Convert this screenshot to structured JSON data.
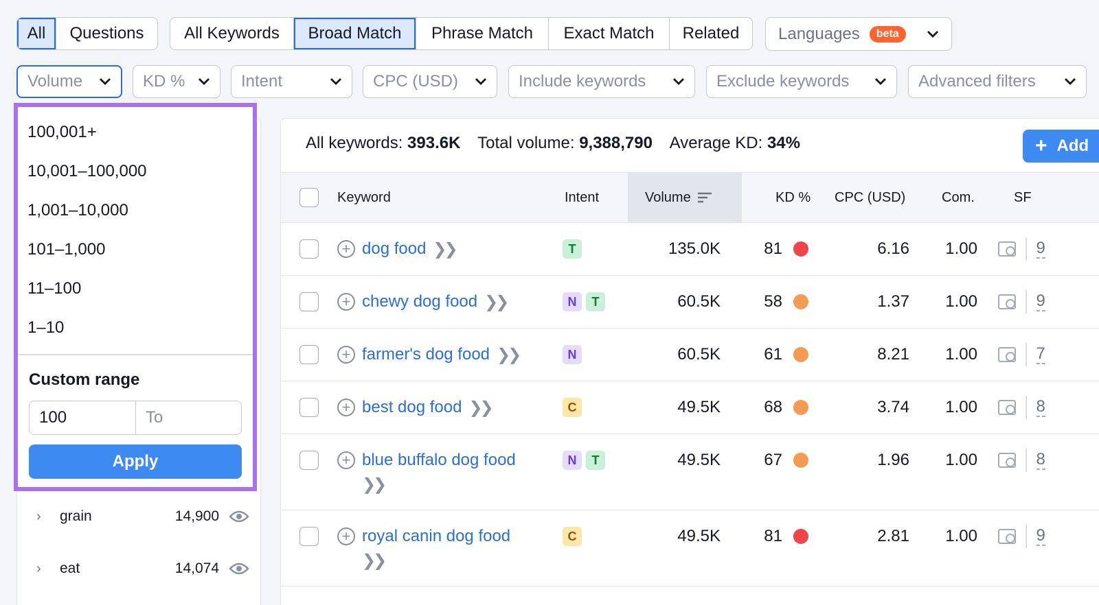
{
  "tabs_scope": [
    "All",
    "Questions"
  ],
  "tabs_match": [
    "All Keywords",
    "Broad Match",
    "Phrase Match",
    "Exact Match",
    "Related"
  ],
  "languages": {
    "label": "Languages",
    "badge": "beta"
  },
  "filters": {
    "volume": "Volume",
    "kd": "KD %",
    "intent": "Intent",
    "cpc": "CPC (USD)",
    "include": "Include keywords",
    "exclude": "Exclude keywords",
    "advanced": "Advanced filters"
  },
  "volume_dropdown": {
    "options": [
      "100,001+",
      "10,001–100,000",
      "1,001–10,000",
      "101–1,000",
      "11–100",
      "1–10"
    ],
    "custom_title": "Custom range",
    "from_value": "100",
    "to_placeholder": "To",
    "apply_label": "Apply"
  },
  "groups": [
    {
      "name": "grain",
      "count": "14,900"
    },
    {
      "name": "eat",
      "count": "14,074"
    }
  ],
  "summary": {
    "all_label": "All keywords:",
    "all_value": "393.6K",
    "total_label": "Total volume:",
    "total_value": "9,388,790",
    "avg_label": "Average KD:",
    "avg_value": "34%"
  },
  "add_button": "Add",
  "table": {
    "headers": {
      "keyword": "Keyword",
      "intent": "Intent",
      "volume": "Volume",
      "kd": "KD %",
      "cpc": "CPC (USD)",
      "com": "Com.",
      "sf": "SF"
    },
    "rows": [
      {
        "keyword": "dog food",
        "intents": [
          "T"
        ],
        "volume": "135.0K",
        "kd": "81",
        "kd_color": "#f0434a",
        "cpc": "6.16",
        "com": "1.00",
        "sf": "9"
      },
      {
        "keyword": "chewy dog food",
        "intents": [
          "N",
          "T"
        ],
        "volume": "60.5K",
        "kd": "58",
        "kd_color": "#f59a52",
        "cpc": "1.37",
        "com": "1.00",
        "sf": "9"
      },
      {
        "keyword": "farmer's dog food",
        "intents": [
          "N"
        ],
        "volume": "60.5K",
        "kd": "61",
        "kd_color": "#f59a52",
        "cpc": "8.21",
        "com": "1.00",
        "sf": "7"
      },
      {
        "keyword": "best dog food",
        "intents": [
          "C"
        ],
        "volume": "49.5K",
        "kd": "68",
        "kd_color": "#f59a52",
        "cpc": "3.74",
        "com": "1.00",
        "sf": "8"
      },
      {
        "keyword": "blue buffalo dog food",
        "intents": [
          "N",
          "T"
        ],
        "volume": "49.5K",
        "kd": "67",
        "kd_color": "#f59a52",
        "cpc": "1.96",
        "com": "1.00",
        "sf": "8"
      },
      {
        "keyword": "royal canin dog food",
        "intents": [
          "C"
        ],
        "volume": "49.5K",
        "kd": "81",
        "kd_color": "#f0434a",
        "cpc": "2.81",
        "com": "1.00",
        "sf": "9"
      }
    ]
  },
  "colors": {
    "accent": "#2b6fd6",
    "highlight_border": "#a971ef",
    "apply": "#3d8bf2"
  }
}
